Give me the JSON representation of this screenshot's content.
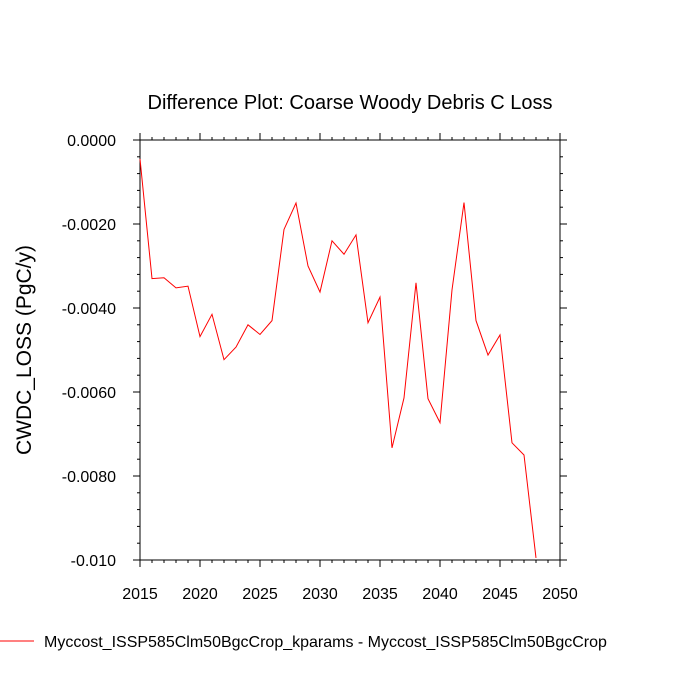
{
  "chart_data": {
    "type": "line",
    "title": "Difference Plot: Coarse Woody Debris C Loss",
    "xlabel": "",
    "ylabel": "CWDC_LOSS  (PgC/y)",
    "xlim": [
      2015,
      2050
    ],
    "ylim": [
      -0.01,
      0.0
    ],
    "x_ticks": [
      2015,
      2020,
      2025,
      2030,
      2035,
      2040,
      2045,
      2050
    ],
    "x_tick_labels": [
      "2015",
      "2020",
      "2025",
      "2030",
      "2035",
      "2040",
      "2045",
      "2050"
    ],
    "y_ticks": [
      0.0,
      -0.002,
      -0.004,
      -0.006,
      -0.008,
      -0.01
    ],
    "y_tick_labels": [
      "0.0000",
      "-0.0020",
      "-0.0040",
      "-0.0060",
      "-0.0080",
      "-0.010"
    ],
    "grid": false,
    "series": [
      {
        "name": "Myccost_ISSP585Clm50BgcCrop_kparams - Myccost_ISSP585Clm50BgcCrop",
        "color": "#ff0000",
        "x": [
          2015,
          2016,
          2017,
          2018,
          2019,
          2020,
          2021,
          2022,
          2023,
          2024,
          2025,
          2026,
          2027,
          2028,
          2029,
          2030,
          2031,
          2032,
          2033,
          2034,
          2035,
          2036,
          2037,
          2038,
          2039,
          2040,
          2041,
          2042,
          2043,
          2044,
          2045,
          2046,
          2047,
          2048
        ],
        "values": [
          -0.00045,
          -0.0033,
          -0.00328,
          -0.00352,
          -0.00348,
          -0.00468,
          -0.00415,
          -0.00523,
          -0.00493,
          -0.0044,
          -0.00463,
          -0.0043,
          -0.00213,
          -0.0015,
          -0.003,
          -0.00362,
          -0.0024,
          -0.00272,
          -0.00226,
          -0.00435,
          -0.00374,
          -0.00733,
          -0.00614,
          -0.0034,
          -0.00616,
          -0.00673,
          -0.00357,
          -0.00149,
          -0.0043,
          -0.00512,
          -0.00464,
          -0.00721,
          -0.0075,
          -0.00995
        ]
      }
    ],
    "legend": {
      "placement": "bottom",
      "label": "Myccost_ISSP585Clm50BgcCrop_kparams - Myccost_ISSP585Clm50BgcCrop"
    }
  }
}
